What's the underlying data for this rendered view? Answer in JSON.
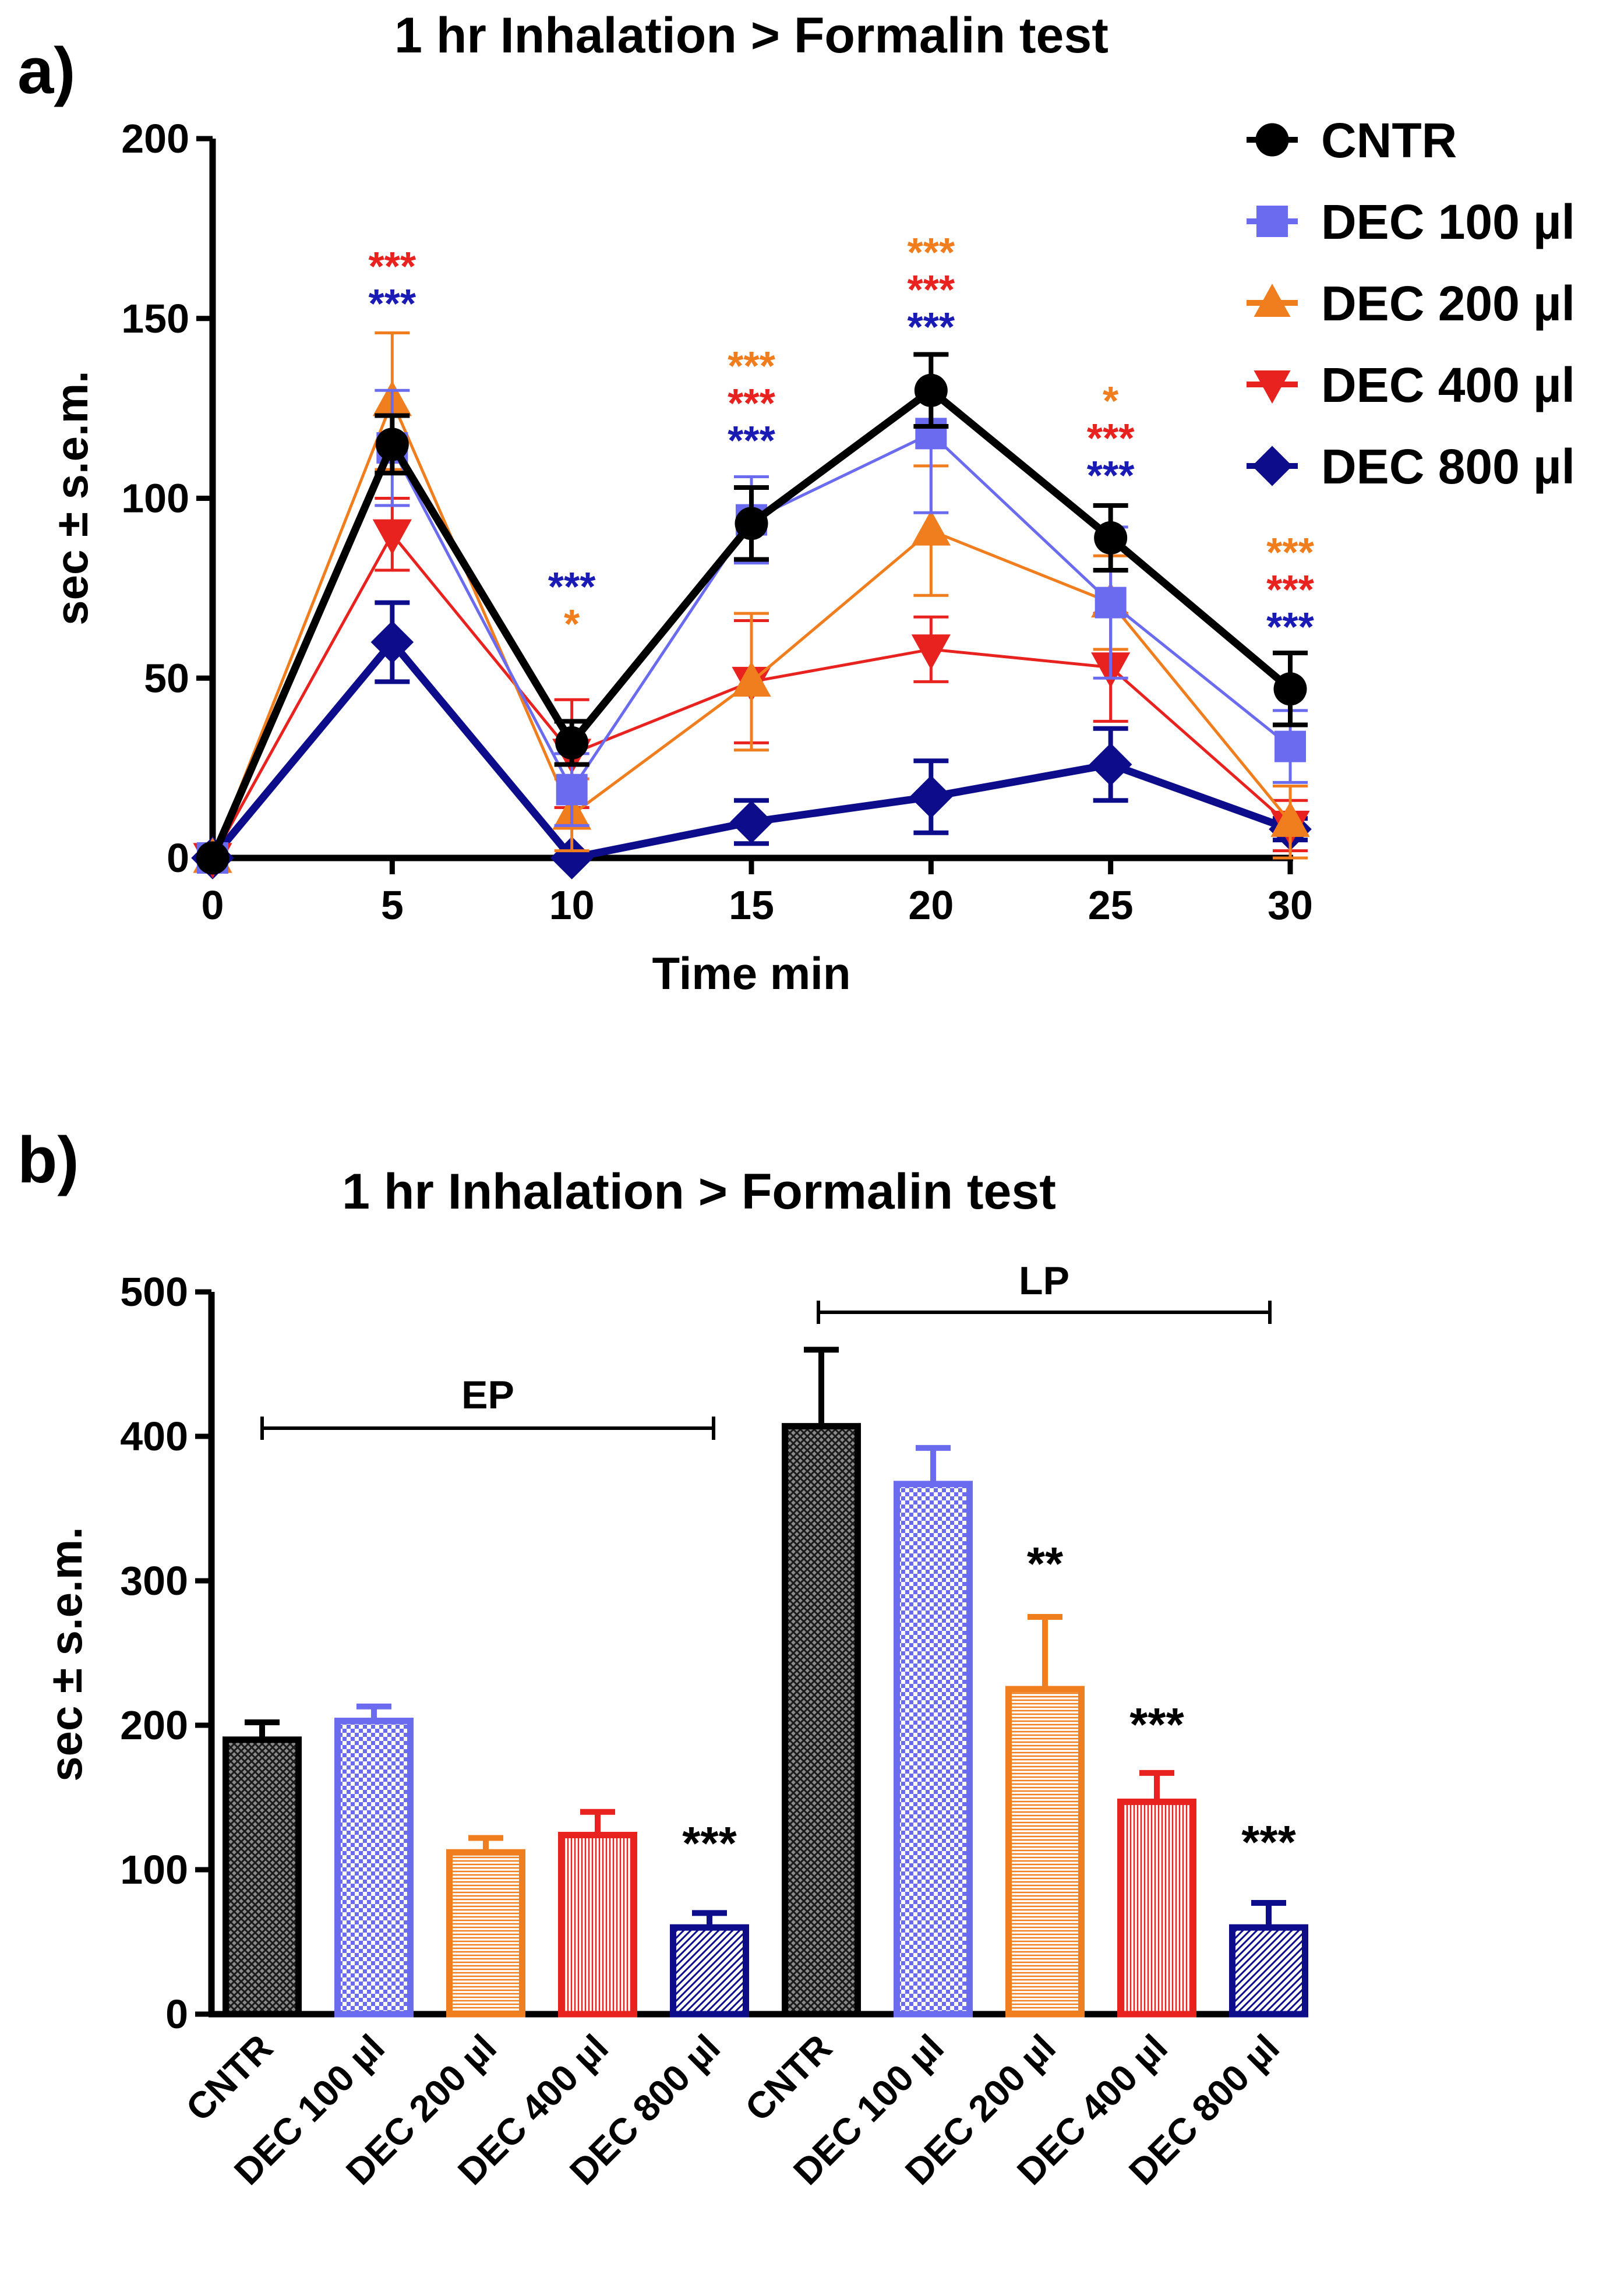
{
  "chart_data": [
    {
      "type": "line",
      "panel_label": "a)",
      "title": "1 hr Inhalation > Formalin test",
      "xlabel": "Time min",
      "ylabel": "sec ± s.e.m.",
      "xlim": [
        0,
        30
      ],
      "ylim": [
        0,
        200
      ],
      "x_ticks": [
        "0",
        "5",
        "10",
        "15",
        "20",
        "25",
        "30"
      ],
      "y_ticks": [
        "0",
        "50",
        "100",
        "150",
        "200"
      ],
      "legend_position": "right",
      "x": [
        0,
        5,
        10,
        15,
        20,
        25,
        30
      ],
      "series": [
        {
          "name": "CNTR",
          "color": "#000000",
          "marker": "circle",
          "values": [
            0,
            115,
            32,
            93,
            130,
            89,
            47
          ],
          "errors": [
            0,
            8,
            6,
            10,
            10,
            9,
            10
          ]
        },
        {
          "name": "DEC 100 µl",
          "color": "#6b6bf0",
          "marker": "square",
          "values": [
            0,
            114,
            19,
            94,
            118,
            71,
            31
          ],
          "errors": [
            0,
            16,
            10,
            12,
            22,
            21,
            10
          ]
        },
        {
          "name": "DEC 200 µl",
          "color": "#f07d1e",
          "marker": "triangle-up",
          "values": [
            0,
            127,
            12,
            49,
            91,
            71,
            10
          ],
          "errors": [
            0,
            19,
            10,
            19,
            18,
            13,
            10
          ]
        },
        {
          "name": "DEC 400 µl",
          "color": "#e8221e",
          "marker": "triangle-down",
          "values": [
            0,
            90,
            29,
            49,
            58,
            53,
            9
          ],
          "errors": [
            0,
            10,
            15,
            17,
            9,
            15,
            7
          ]
        },
        {
          "name": "DEC 800 µl",
          "color": "#0d0d8c",
          "marker": "diamond",
          "values": [
            0,
            60,
            0,
            10,
            17,
            26,
            8
          ],
          "errors": [
            0,
            11,
            0,
            6,
            10,
            10,
            3
          ]
        }
      ],
      "annotations": [
        {
          "x": 5,
          "stars": [
            {
              "text": "***",
              "color": "#e8221e"
            },
            {
              "text": "***",
              "color": "#1a1ab5"
            }
          ]
        },
        {
          "x": 10,
          "stars": [
            {
              "text": "***",
              "color": "#1a1ab5"
            },
            {
              "text": "*",
              "color": "#f07d1e"
            }
          ]
        },
        {
          "x": 15,
          "stars": [
            {
              "text": "***",
              "color": "#f07d1e"
            },
            {
              "text": "***",
              "color": "#e8221e"
            },
            {
              "text": "***",
              "color": "#1a1ab5"
            }
          ]
        },
        {
          "x": 20,
          "stars": [
            {
              "text": "***",
              "color": "#f07d1e"
            },
            {
              "text": "***",
              "color": "#e8221e"
            },
            {
              "text": "***",
              "color": "#1a1ab5"
            }
          ]
        },
        {
          "x": 25,
          "stars": [
            {
              "text": "*",
              "color": "#f07d1e"
            },
            {
              "text": "***",
              "color": "#e8221e"
            },
            {
              "text": "***",
              "color": "#1a1ab5"
            }
          ]
        },
        {
          "x": 30,
          "stars": [
            {
              "text": "***",
              "color": "#f07d1e"
            },
            {
              "text": "***",
              "color": "#e8221e"
            },
            {
              "text": "***",
              "color": "#1a1ab5"
            }
          ]
        }
      ]
    },
    {
      "type": "bar",
      "panel_label": "b)",
      "title": "1 hr Inhalation > Formalin test",
      "xlabel": "",
      "ylabel": "sec ± s.e.m.",
      "ylim": [
        0,
        500
      ],
      "y_ticks": [
        "0",
        "100",
        "200",
        "300",
        "400",
        "500"
      ],
      "categories": [
        "CNTR",
        "DEC 100 µl",
        "DEC 200 µl",
        "DEC 400 µl",
        "DEC 800 µl",
        "CNTR",
        "DEC 100 µl",
        "DEC 200 µl",
        "DEC 400 µl",
        "DEC 800 µl"
      ],
      "values": [
        190,
        203,
        112,
        124,
        60,
        407,
        367,
        225,
        147,
        60
      ],
      "errors": [
        12,
        10,
        10,
        16,
        10,
        53,
        25,
        50,
        20,
        17
      ],
      "colors": [
        "#000000",
        "#6b6bf0",
        "#f07d1e",
        "#e8221e",
        "#0d0d8c",
        "#000000",
        "#6b6bf0",
        "#f07d1e",
        "#e8221e",
        "#0d0d8c"
      ],
      "significance": [
        "",
        "",
        "",
        "",
        "***",
        "",
        "",
        "**",
        "***",
        "***"
      ],
      "groups": [
        {
          "label": "EP",
          "from": 0,
          "to": 4
        },
        {
          "label": "LP",
          "from": 5,
          "to": 9
        }
      ]
    }
  ]
}
